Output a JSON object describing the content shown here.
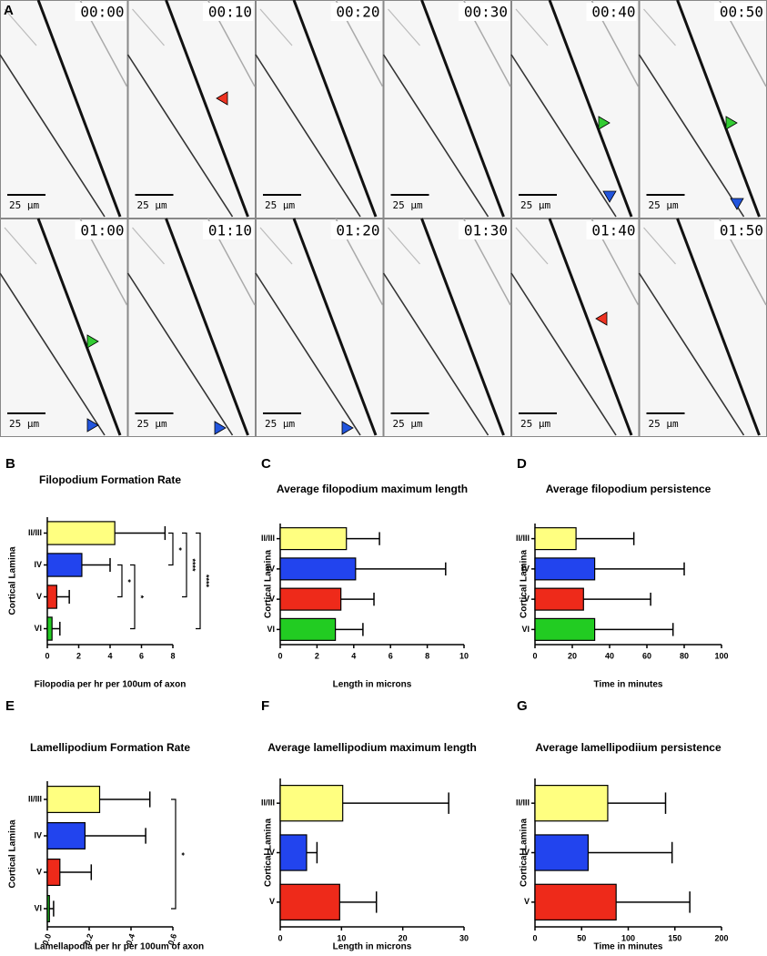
{
  "panel_a": {
    "label": "A",
    "frames": [
      {
        "time": "00:00",
        "scale": "25 µm"
      },
      {
        "time": "00:10",
        "scale": "25 µm"
      },
      {
        "time": "00:20",
        "scale": "25 µm"
      },
      {
        "time": "00:30",
        "scale": "25 µm"
      },
      {
        "time": "00:40",
        "scale": "25 µm"
      },
      {
        "time": "00:50",
        "scale": "25 µm"
      },
      {
        "time": "01:00",
        "scale": "25 µm"
      },
      {
        "time": "01:10",
        "scale": "25 µm"
      },
      {
        "time": "01:20",
        "scale": "25 µm"
      },
      {
        "time": "01:30",
        "scale": "25 µm"
      },
      {
        "time": "01:40",
        "scale": "25 µm"
      },
      {
        "time": "01:50",
        "scale": "25 µm"
      }
    ]
  },
  "chart_data": [
    {
      "type": "bar",
      "label": "B",
      "title": "Filopodium Formation Rate",
      "xlabel": "Filopodia per hr per 100um of axon",
      "ylabel": "Cortical Lamina",
      "categories": [
        "II/III",
        "IV",
        "V",
        "VI"
      ],
      "values": [
        4.3,
        2.2,
        0.6,
        0.3
      ],
      "errors": [
        3.2,
        1.8,
        0.8,
        0.5
      ],
      "colors": [
        "#ffff80",
        "#2244ee",
        "#ee2a1a",
        "#22cc22"
      ],
      "xlim": [
        0,
        8
      ],
      "xticks": [
        0,
        2,
        4,
        6,
        8
      ],
      "annotations": [
        {
          "label": "*",
          "between": [
            "II/III",
            "IV"
          ]
        },
        {
          "label": "*",
          "between": [
            "IV",
            "V"
          ]
        },
        {
          "label": "*",
          "between": [
            "IV",
            "VI"
          ]
        },
        {
          "label": "****",
          "between": [
            "II/III",
            "V"
          ]
        },
        {
          "label": "****",
          "between": [
            "II/III",
            "VI"
          ]
        }
      ]
    },
    {
      "type": "bar",
      "label": "C",
      "title": "Average filopodium maximum length",
      "xlabel": "Length in microns",
      "ylabel": "Cortical Lamina",
      "categories": [
        "II/III",
        "IV",
        "V",
        "VI"
      ],
      "values": [
        3.6,
        4.1,
        3.3,
        3.0
      ],
      "errors": [
        1.8,
        4.9,
        1.8,
        1.5
      ],
      "colors": [
        "#ffff80",
        "#2244ee",
        "#ee2a1a",
        "#22cc22"
      ],
      "xlim": [
        0,
        10
      ],
      "xticks": [
        0,
        2,
        4,
        6,
        8,
        10
      ]
    },
    {
      "type": "bar",
      "label": "D",
      "title": "Average filopodium persistence",
      "xlabel": "Time in minutes",
      "ylabel": "Cortical Lamina",
      "categories": [
        "II/III",
        "IV",
        "V",
        "VI"
      ],
      "values": [
        22,
        32,
        26,
        32
      ],
      "errors": [
        31,
        48,
        36,
        42
      ],
      "colors": [
        "#ffff80",
        "#2244ee",
        "#ee2a1a",
        "#22cc22"
      ],
      "xlim": [
        0,
        100
      ],
      "xticks": [
        0,
        20,
        40,
        60,
        80,
        100
      ]
    },
    {
      "type": "bar",
      "label": "E",
      "title": "Lamellipodium Formation Rate",
      "xlabel": "Lamellapodia per hr per 100um of axon",
      "ylabel": "Cortical Lamina",
      "categories": [
        "II/III",
        "IV",
        "V",
        "VI"
      ],
      "values": [
        0.25,
        0.18,
        0.06,
        0.01
      ],
      "errors": [
        0.24,
        0.29,
        0.15,
        0.02
      ],
      "colors": [
        "#ffff80",
        "#2244ee",
        "#ee2a1a",
        "#22cc22"
      ],
      "xlim": [
        0,
        0.6
      ],
      "xticks": [
        {
          "value": 0,
          "label": "0.0"
        },
        0.2,
        0.4,
        0.6
      ],
      "annotations": [
        {
          "label": "*",
          "between": [
            "II/III",
            "VI"
          ]
        }
      ]
    },
    {
      "type": "bar",
      "label": "F",
      "title": "Average lamellipodium maximum length",
      "xlabel": "Length in microns",
      "ylabel": "Cortical Lamina",
      "categories": [
        "II/III",
        "IV",
        "V"
      ],
      "values": [
        10.2,
        4.3,
        9.7
      ],
      "errors": [
        17.3,
        1.7,
        6.0
      ],
      "colors": [
        "#ffff80",
        "#2244ee",
        "#ee2a1a"
      ],
      "xlim": [
        0,
        30
      ],
      "xticks": [
        0,
        10,
        20,
        30
      ]
    },
    {
      "type": "bar",
      "label": "G",
      "title": "Average lamellipodiium persistence",
      "xlabel": "Time in minutes",
      "ylabel": "Cortical Lamina",
      "categories": [
        "II/III",
        "IV",
        "V"
      ],
      "values": [
        78,
        57,
        87
      ],
      "errors": [
        62,
        90,
        79
      ],
      "colors": [
        "#ffff80",
        "#2244ee",
        "#ee2a1a"
      ],
      "xlim": [
        0,
        200
      ],
      "xticks": [
        0,
        50,
        100,
        150,
        200
      ]
    }
  ]
}
